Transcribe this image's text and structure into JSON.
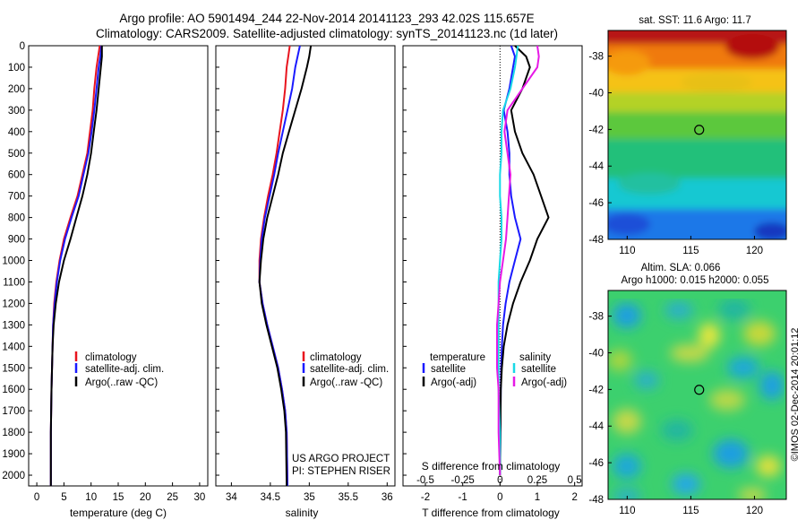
{
  "header": {
    "title_line1": "Argo profile: AO 5901494_244 22-Nov-2014 20141123_293 42.02S 115.657E",
    "title_line2": "Climatology: CARS2009. Satellite-adjusted climatology: synTS_20141123.nc (1d later)"
  },
  "colors": {
    "climatology": "#e8141e",
    "satellite": "#1a1aff",
    "argo": "#000000",
    "satellite_salinity": "#19d9e6",
    "argo_salinity_adj": "#e619e6"
  },
  "chart_data": [
    {
      "type": "line",
      "id": "temperature",
      "xlabel": "temperature (deg C)",
      "ylabel": "",
      "xlim": [
        -1.5,
        31.5
      ],
      "ylim": [
        2050,
        0
      ],
      "xticks": [
        0,
        5,
        10,
        15,
        20,
        25,
        30
      ],
      "yticks": [
        0,
        100,
        200,
        300,
        400,
        500,
        600,
        700,
        800,
        900,
        1000,
        1100,
        1200,
        1300,
        1400,
        1500,
        1600,
        1700,
        1800,
        1900,
        2000
      ],
      "legend": [
        "climatology",
        "satellite-adj. clim.",
        "Argo(..raw -QC)"
      ],
      "series": [
        {
          "name": "climatology",
          "color": "#e8141e",
          "x": [
            11.6,
            11.3,
            11.0,
            10.6,
            10.3,
            9.8,
            9.3,
            8.4,
            7.5,
            6.2,
            5.0,
            4.2,
            3.6,
            3.2,
            3.0,
            2.9,
            2.8,
            2.7,
            2.6,
            2.6
          ],
          "y": [
            0,
            50,
            100,
            200,
            300,
            400,
            500,
            600,
            700,
            800,
            900,
            1000,
            1100,
            1200,
            1300,
            1400,
            1500,
            1600,
            1800,
            2050
          ]
        },
        {
          "name": "satellite-adj. clim.",
          "color": "#1a1aff",
          "x": [
            11.9,
            11.7,
            11.4,
            11.0,
            10.6,
            10.1,
            9.5,
            8.6,
            7.7,
            6.4,
            5.2,
            4.3,
            3.7,
            3.3,
            3.0,
            2.9,
            2.8,
            2.7,
            2.6,
            2.6
          ],
          "y": [
            0,
            50,
            100,
            200,
            300,
            400,
            500,
            600,
            700,
            800,
            900,
            1000,
            1100,
            1200,
            1300,
            1400,
            1500,
            1600,
            1800,
            2050
          ]
        },
        {
          "name": "Argo(..raw -QC)",
          "color": "#000000",
          "x": [
            12.0,
            12.0,
            11.8,
            11.4,
            11.0,
            10.5,
            10.0,
            9.3,
            8.4,
            7.3,
            6.2,
            5.0,
            4.1,
            3.5,
            3.1,
            2.9,
            2.8,
            2.7,
            2.6,
            2.6
          ],
          "y": [
            0,
            50,
            100,
            200,
            300,
            400,
            500,
            600,
            700,
            800,
            900,
            1000,
            1100,
            1200,
            1300,
            1400,
            1500,
            1600,
            1800,
            2050
          ]
        }
      ]
    },
    {
      "type": "line",
      "id": "salinity",
      "xlabel": "salinity",
      "ylabel": "",
      "xlim": [
        33.8,
        36.1
      ],
      "ylim": [
        2050,
        0
      ],
      "xticks": [
        34,
        34.5,
        35,
        35.5,
        36
      ],
      "xtick_labels": [
        "34",
        "34.5",
        "35",
        "35.5",
        "36"
      ],
      "legend": [
        "climatology",
        "satellite-adj. clim.",
        "Argo(..raw -QC)"
      ],
      "annotation": [
        "US ARGO PROJECT",
        "PI: STEPHEN RISER"
      ],
      "series": [
        {
          "name": "climatology",
          "color": "#e8141e",
          "x": [
            34.75,
            34.73,
            34.71,
            34.69,
            34.66,
            34.62,
            34.58,
            34.53,
            34.47,
            34.42,
            34.38,
            34.36,
            34.36,
            34.4,
            34.46,
            34.53,
            34.6,
            34.65,
            34.69,
            34.71,
            34.72
          ],
          "y": [
            0,
            50,
            100,
            200,
            300,
            400,
            500,
            600,
            700,
            800,
            900,
            1000,
            1100,
            1200,
            1300,
            1400,
            1500,
            1600,
            1700,
            1800,
            2050
          ]
        },
        {
          "name": "satellite-adj. clim.",
          "color": "#1a1aff",
          "x": [
            34.88,
            34.85,
            34.82,
            34.78,
            34.72,
            34.66,
            34.6,
            34.55,
            34.49,
            34.43,
            34.39,
            34.37,
            34.36,
            34.4,
            34.46,
            34.53,
            34.6,
            34.65,
            34.69,
            34.71,
            34.72
          ],
          "y": [
            0,
            50,
            100,
            200,
            300,
            400,
            500,
            600,
            700,
            800,
            900,
            1000,
            1100,
            1200,
            1300,
            1400,
            1500,
            1600,
            1700,
            1800,
            2050
          ]
        },
        {
          "name": "Argo(..raw -QC)",
          "color": "#000000",
          "x": [
            35.02,
            35.0,
            34.97,
            34.9,
            34.82,
            34.74,
            34.66,
            34.6,
            34.53,
            34.46,
            34.41,
            34.38,
            34.36,
            34.39,
            34.45,
            34.52,
            34.59,
            34.64,
            34.68,
            34.7,
            34.71
          ],
          "y": [
            0,
            50,
            100,
            200,
            300,
            400,
            500,
            600,
            700,
            800,
            900,
            1000,
            1100,
            1200,
            1300,
            1400,
            1500,
            1600,
            1700,
            1800,
            2050
          ]
        }
      ]
    },
    {
      "type": "line",
      "id": "difference",
      "xlabel": "T difference from climatology",
      "xlabel2": "S difference from climatology",
      "xlim": [
        -2.6,
        2.2
      ],
      "ylim": [
        2050,
        0
      ],
      "xticks": [
        -2,
        -1,
        0,
        1,
        2
      ],
      "xticks2": [
        -0.5,
        -0.25,
        0,
        0.25,
        0.5
      ],
      "xtick2_labels": [
        "-0.5",
        "-0.25",
        "0",
        "0.25",
        "0.5"
      ],
      "legend_temperature_title": "temperature",
      "legend_salinity_title": "salinity",
      "legend": [
        "satellite",
        "Argo(-adj)",
        "satellite",
        "Argo(-adj)"
      ],
      "series": [
        {
          "name": "satellite",
          "group": "temperature",
          "color": "#1a1aff",
          "x": [
            0.3,
            0.4,
            0.35,
            0.25,
            0.1,
            0.2,
            0.25,
            0.25,
            0.3,
            0.4,
            0.55,
            0.4,
            0.25,
            0.15,
            0.08,
            0.05,
            0.03,
            0.02,
            0.01,
            0.0
          ],
          "y": [
            0,
            50,
            100,
            200,
            300,
            400,
            500,
            600,
            700,
            800,
            900,
            1000,
            1100,
            1200,
            1300,
            1400,
            1500,
            1600,
            1800,
            2000
          ]
        },
        {
          "name": "Argo(-adj)",
          "group": "temperature",
          "color": "#000000",
          "x": [
            0.4,
            0.7,
            0.8,
            0.6,
            0.3,
            0.4,
            0.6,
            0.9,
            1.1,
            1.3,
            1.0,
            0.8,
            0.55,
            0.35,
            0.2,
            0.1,
            0.05,
            0.02,
            0.01,
            0.0
          ],
          "y": [
            0,
            50,
            100,
            200,
            300,
            400,
            500,
            600,
            700,
            800,
            900,
            1000,
            1100,
            1200,
            1300,
            1400,
            1500,
            1600,
            1800,
            2000
          ]
        },
        {
          "name": "satellite",
          "group": "salinity",
          "color": "#19d9e6",
          "x": [
            0.12,
            0.11,
            0.1,
            0.07,
            0.02,
            0.01,
            0.01,
            0.0,
            0.0,
            0.01,
            0.01,
            0.0,
            -0.01,
            -0.01,
            -0.01,
            -0.01,
            -0.01,
            -0.01,
            0.0,
            0.0
          ],
          "y": [
            0,
            50,
            100,
            200,
            300,
            400,
            500,
            600,
            700,
            800,
            900,
            1000,
            1100,
            1200,
            1300,
            1400,
            1500,
            1600,
            1800,
            2000
          ]
        },
        {
          "name": "Argo(-adj)",
          "group": "salinity",
          "color": "#e619e6",
          "x": [
            0.25,
            0.26,
            0.25,
            0.15,
            0.05,
            0.03,
            0.05,
            0.07,
            0.06,
            0.05,
            0.04,
            0.02,
            0.0,
            -0.01,
            -0.02,
            -0.02,
            -0.02,
            -0.01,
            -0.01,
            0.0
          ],
          "y": [
            0,
            50,
            100,
            200,
            300,
            400,
            500,
            600,
            700,
            800,
            900,
            1000,
            1100,
            1200,
            1300,
            1400,
            1500,
            1600,
            1800,
            2000
          ]
        }
      ]
    },
    {
      "type": "heatmap",
      "id": "sst_map",
      "title": "sat. SST: 11.6 Argo: 11.7",
      "xlim": [
        108.5,
        122.5
      ],
      "ylim": [
        -48,
        -36.6
      ],
      "xticks": [
        110,
        115,
        120
      ],
      "yticks": [
        -38,
        -40,
        -42,
        -44,
        -46,
        -48
      ],
      "marker": {
        "lon": 115.657,
        "lat": -42.02
      }
    },
    {
      "type": "heatmap",
      "id": "sla_map",
      "title_line1": "Altim. SLA: 0.066",
      "title_line2": "Argo h1000: 0.015 h2000: 0.055",
      "xlim": [
        108.5,
        122.5
      ],
      "ylim": [
        -48,
        -36.6
      ],
      "xticks": [
        110,
        115,
        120
      ],
      "yticks": [
        -38,
        -40,
        -42,
        -44,
        -46,
        -48
      ],
      "marker": {
        "lon": 115.657,
        "lat": -42.02
      },
      "side_label": "©IMOS 02-Dec-2014 20:01:12"
    }
  ]
}
